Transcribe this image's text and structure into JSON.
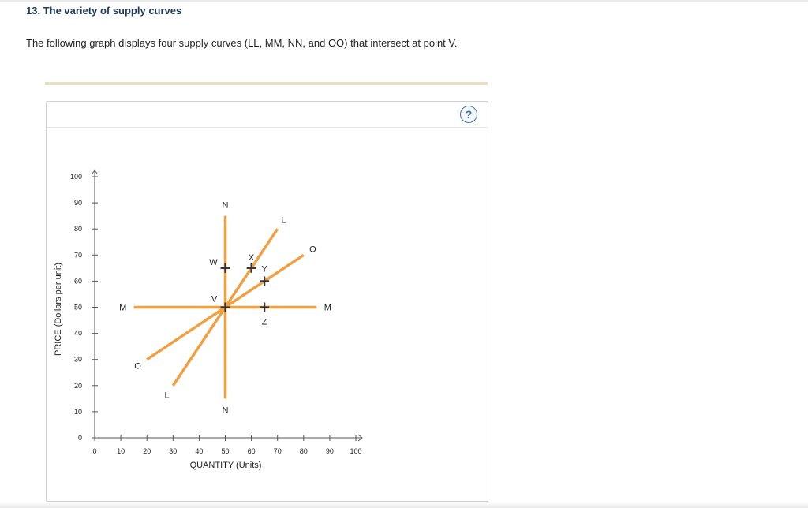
{
  "page": {
    "title": "13. The variety of supply curves",
    "description": "The following graph displays four supply curves (LL, MM, NN, and OO) that intersect at point V."
  },
  "help": {
    "label": "?"
  },
  "chart_data": {
    "type": "line",
    "title": "",
    "xlabel": "QUANTITY (Units)",
    "ylabel": "PRICE (Dollars per unit)",
    "xlim": [
      0,
      100
    ],
    "ylim": [
      0,
      100
    ],
    "xticks": [
      0,
      10,
      20,
      30,
      40,
      50,
      60,
      70,
      80,
      90,
      100
    ],
    "yticks": [
      0,
      10,
      20,
      30,
      40,
      50,
      60,
      70,
      80,
      90,
      100
    ],
    "grid": false,
    "line_color": "#f0a040",
    "point_color": "#333333",
    "series": [
      {
        "start_label": "L",
        "end_label": "L",
        "points": [
          [
            30,
            20
          ],
          [
            70,
            80
          ]
        ]
      },
      {
        "start_label": "M",
        "end_label": "M",
        "points": [
          [
            15,
            50
          ],
          [
            85,
            50
          ]
        ]
      },
      {
        "start_label": "N",
        "end_label": "N",
        "points": [
          [
            50,
            15
          ],
          [
            50,
            85
          ]
        ]
      },
      {
        "start_label": "O",
        "end_label": "O",
        "points": [
          [
            20,
            30
          ],
          [
            80,
            70
          ]
        ]
      }
    ],
    "points": [
      {
        "label": "V",
        "x": 50,
        "y": 50
      },
      {
        "label": "W",
        "x": 50,
        "y": 65
      },
      {
        "label": "X",
        "x": 60,
        "y": 65
      },
      {
        "label": "Y",
        "x": 65,
        "y": 60
      },
      {
        "label": "Z",
        "x": 65,
        "y": 50
      }
    ]
  }
}
